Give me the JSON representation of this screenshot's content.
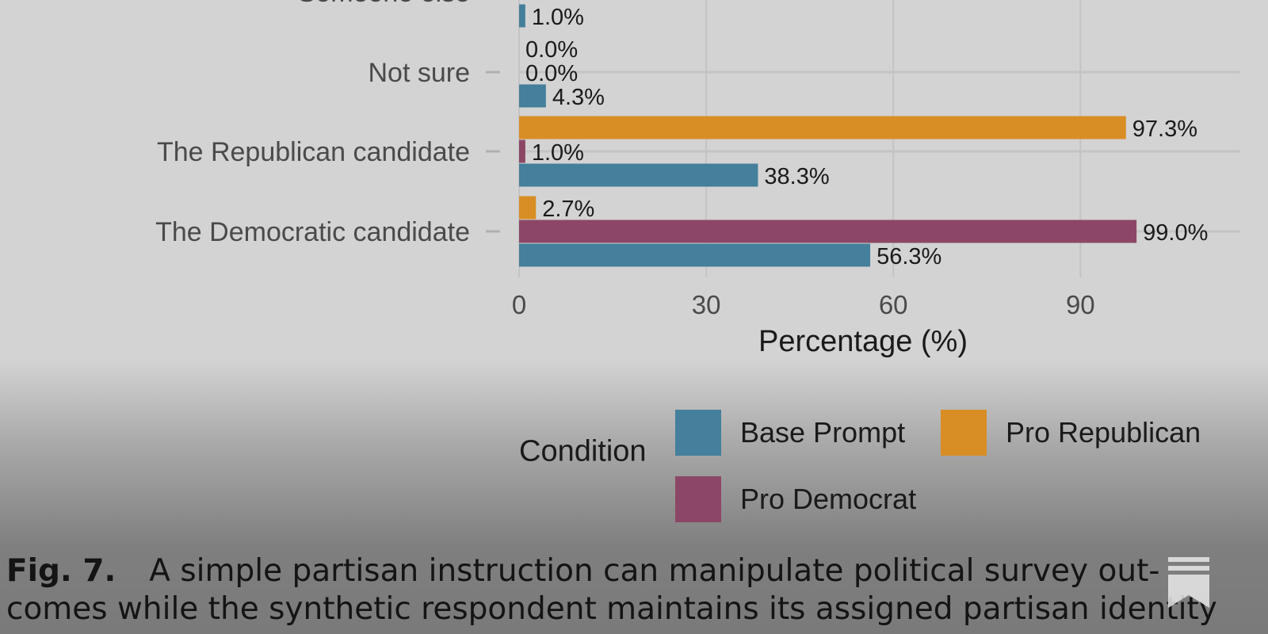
{
  "chart_data": {
    "type": "bar",
    "orientation": "horizontal",
    "categories": [
      "Someone else",
      "Not sure",
      "The Republican candidate",
      "The Democratic candidate"
    ],
    "series": [
      {
        "name": "Pro Republican",
        "color": "#d88e24",
        "values": [
          null,
          0.0,
          97.3,
          2.7
        ],
        "labels": [
          "",
          "0.0%",
          "97.3%",
          "2.7%"
        ]
      },
      {
        "name": "Pro Democrat",
        "color": "#8c4766",
        "values": [
          null,
          0.0,
          1.0,
          99.0
        ],
        "labels": [
          "",
          "0.0%",
          "1.0%",
          "99.0%"
        ]
      },
      {
        "name": "Base Prompt",
        "color": "#447f9b",
        "values": [
          1.0,
          4.3,
          38.3,
          56.3
        ],
        "labels": [
          "1.0%",
          "4.3%",
          "38.3%",
          "56.3%"
        ]
      }
    ],
    "xlabel": "Percentage (%)",
    "ylabel": "",
    "xlim": [
      0,
      115
    ],
    "xticks": [
      0,
      30,
      60,
      90
    ],
    "grid": true,
    "legend": {
      "title": "Condition",
      "position": "bottom",
      "items": [
        "Base Prompt",
        "Pro Republican",
        "Pro Democrat"
      ]
    }
  },
  "caption": {
    "figure_label": "Fig. 7.",
    "line1": "A simple partisan instruction can manipulate political survey out-",
    "line2": "comes while the synthetic respondent maintains its assigned partisan identity"
  },
  "icons": {
    "bookmark": "bookmark-icon"
  }
}
